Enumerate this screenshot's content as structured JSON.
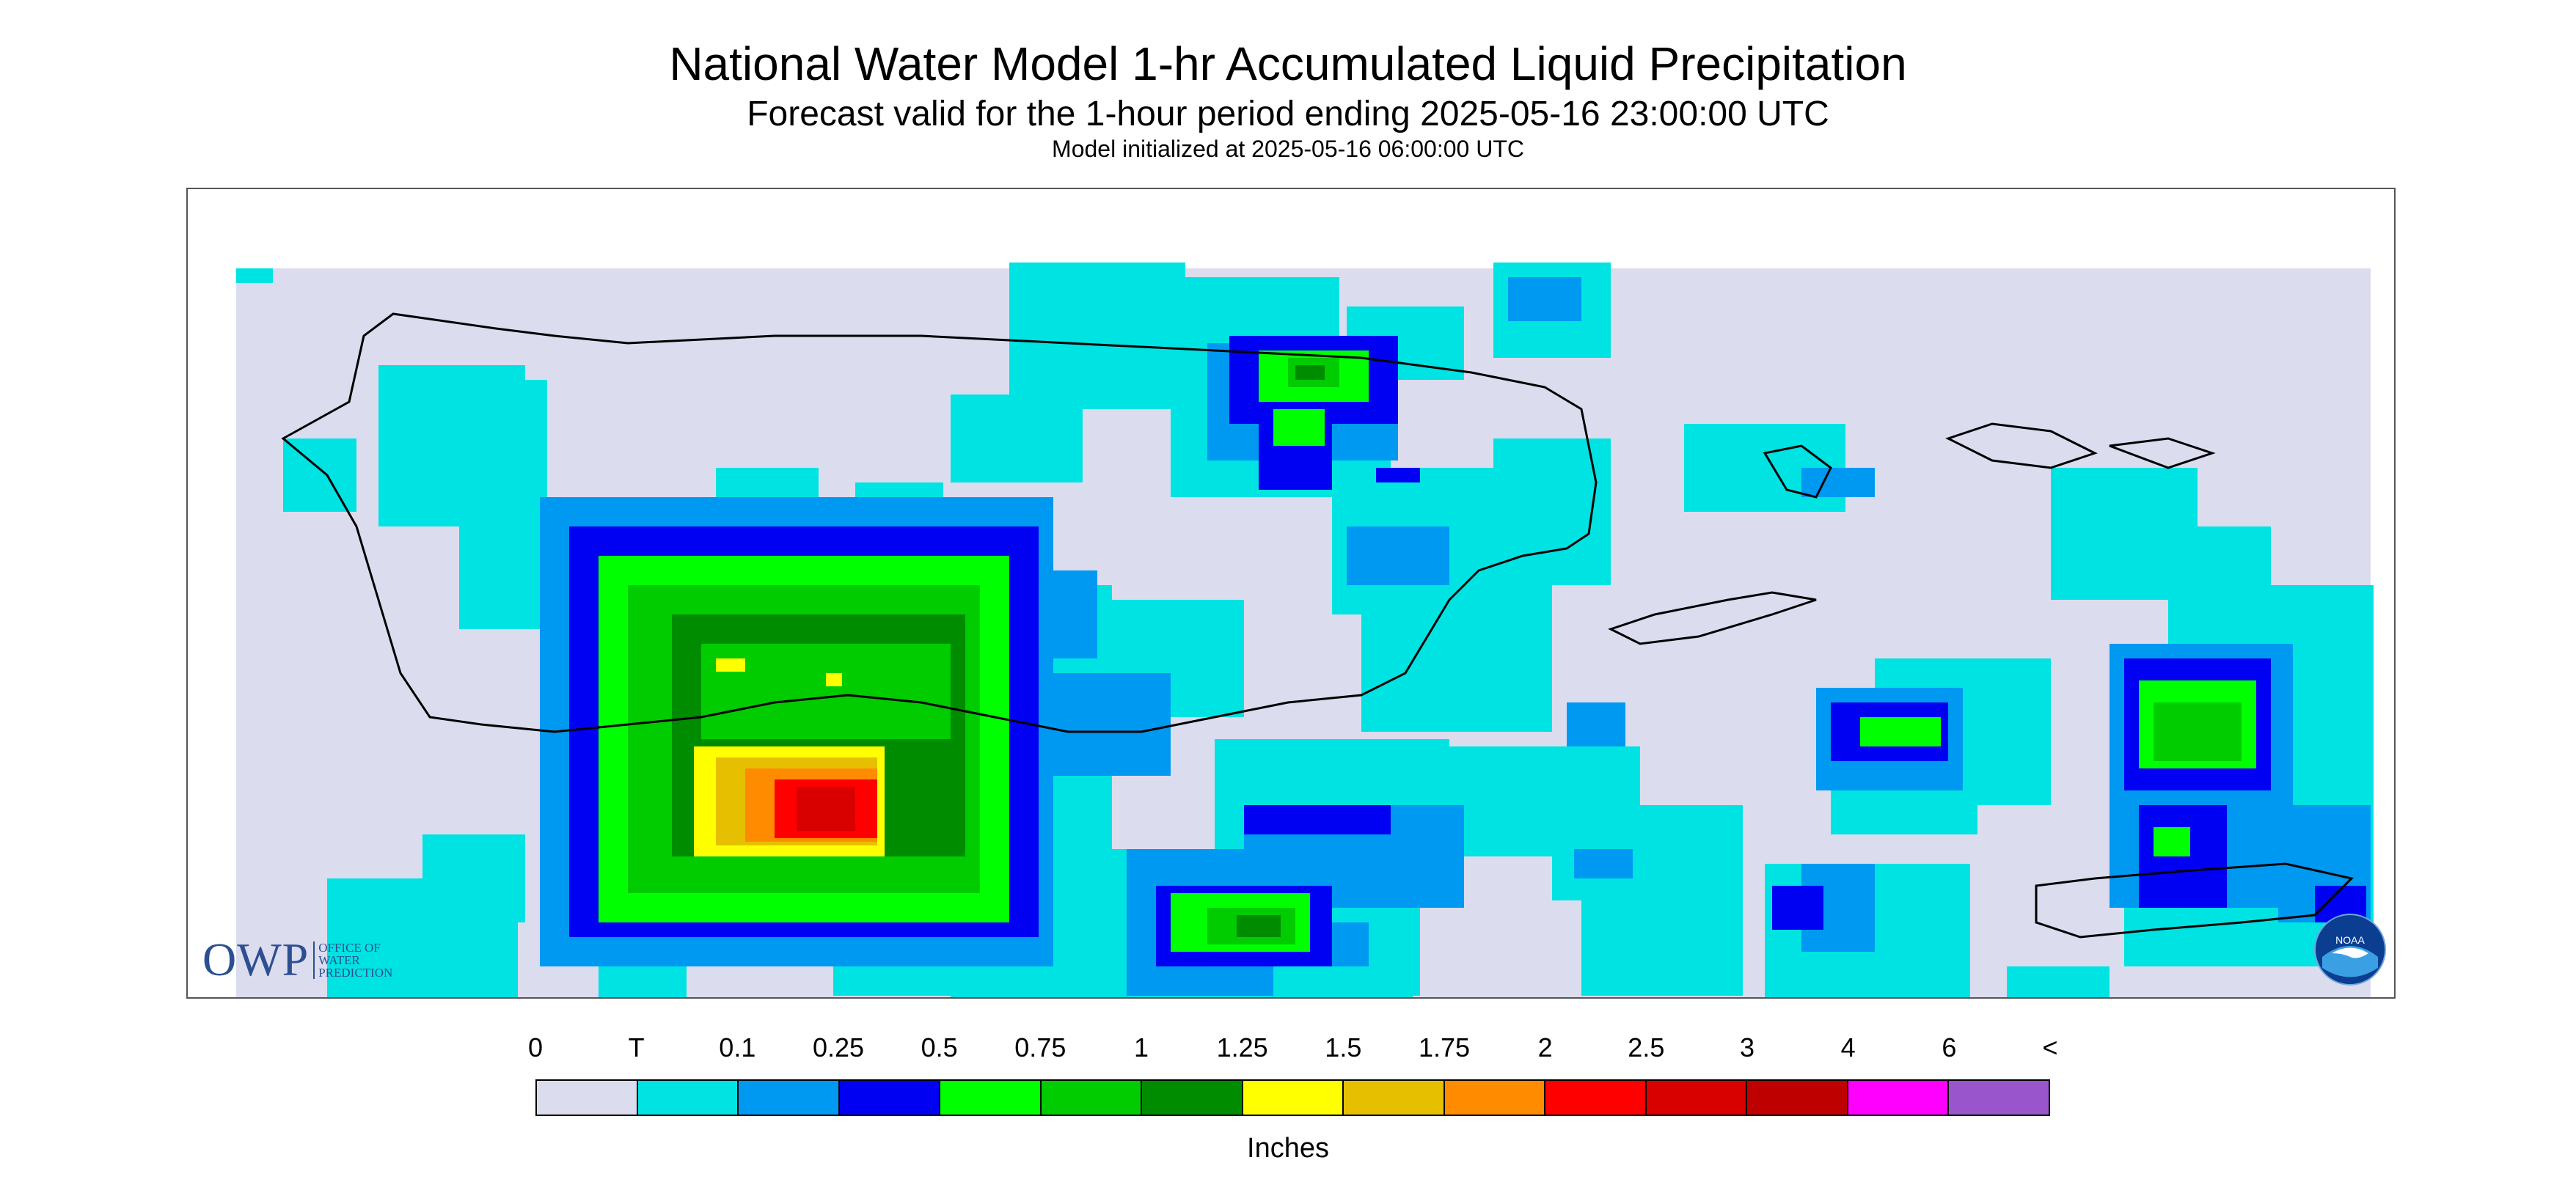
{
  "title": "National Water Model 1-hr Accumulated Liquid Precipitation",
  "subtitle": "Forecast valid for the 1-hour period ending 2025-05-16 23:00:00 UTC",
  "init_line": "Model initialized at 2025-05-16 06:00:00 UTC",
  "logo_owp": {
    "big": "OWP",
    "line1": "OFFICE OF",
    "line2": "WATER",
    "line3": "PREDICTION"
  },
  "logo_noaa": {
    "text": "NOAA"
  },
  "legend": {
    "units": "Inches",
    "tick_labels": [
      "0",
      "T",
      "0.1",
      "0.25",
      "0.5",
      "0.75",
      "1",
      "1.25",
      "1.5",
      "1.75",
      "2",
      "2.5",
      "3",
      "4",
      "6",
      "<"
    ],
    "colors": [
      "#dcdcef",
      "#00e3e3",
      "#0099f2",
      "#0000f2",
      "#00ff00",
      "#00cc00",
      "#008c00",
      "#ffff00",
      "#e6c000",
      "#ff8c00",
      "#ff0000",
      "#d90000",
      "#bf0000",
      "#ff00ff",
      "#9955cc"
    ]
  },
  "map": {
    "background_color": "#dcdcef",
    "region": "Puerto Rico and U.S. Virgin Islands",
    "max_intensity_level": "2.5"
  }
}
